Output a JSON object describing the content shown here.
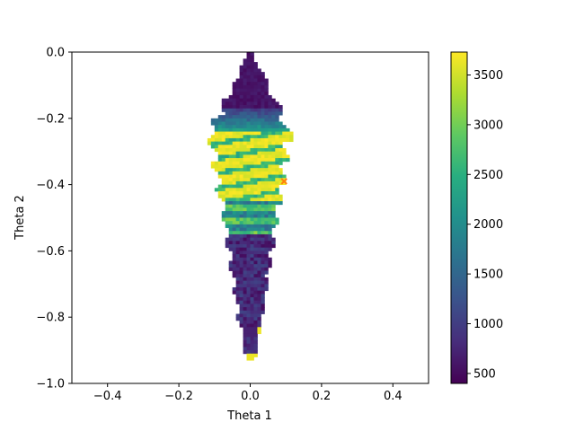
{
  "chart_data": {
    "type": "heatmap",
    "title": "",
    "xlabel": "Theta 1",
    "ylabel": "Theta 2",
    "xlim": [
      -0.5,
      0.5
    ],
    "ylim": [
      -1.0,
      0.0
    ],
    "grid": false,
    "x_ticks": [
      "−0.4",
      "−0.2",
      "0.0",
      "0.2",
      "0.4"
    ],
    "x_tick_values": [
      -0.4,
      -0.2,
      0.0,
      0.2,
      0.4
    ],
    "y_ticks": [
      "0.0",
      "−0.2",
      "−0.4",
      "−0.6",
      "−0.8",
      "−1.0"
    ],
    "y_tick_values": [
      0.0,
      -0.2,
      -0.4,
      -0.6,
      -0.8,
      -1.0
    ],
    "colormap": "viridis",
    "colorbar": {
      "vmin": 400,
      "vmax": 3730,
      "ticks": [
        "500",
        "1000",
        "1500",
        "2000",
        "2500",
        "3000",
        "3500"
      ],
      "tick_values": [
        500,
        1000,
        1500,
        2000,
        2500,
        3000,
        3500
      ]
    },
    "cell_size": 0.01,
    "region": {
      "top_vertex": [
        0.0,
        0.0
      ],
      "widest": {
        "y": -0.24,
        "x_min": -0.12,
        "x_max": 0.12
      },
      "bottom_tip": {
        "y": -0.93,
        "x_min": -0.01,
        "x_max": 0.01
      }
    },
    "marker": {
      "x": 0.095,
      "y": -0.39,
      "color": "#ff7f0e"
    }
  },
  "colors": {
    "low": "#440154",
    "mid": "#21918c",
    "high": "#fde725"
  }
}
